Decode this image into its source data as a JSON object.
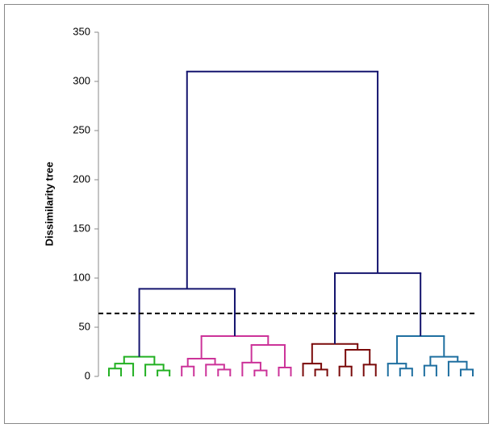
{
  "chart_data": {
    "type": "dendrogram",
    "ylabel": "Dissimilarity tree",
    "ylim": [
      0,
      350
    ],
    "yticks": [
      0,
      50,
      100,
      150,
      200,
      250,
      300,
      350
    ],
    "cut_height": 64,
    "tree": {
      "height": 310,
      "color": "#14146e",
      "children": [
        {
          "height": 89,
          "children": [
            {
              "height": 20,
              "color": "#22b022",
              "children": [
                {
                  "height": 13,
                  "children": [
                    {
                      "height": 8,
                      "children": [
                        {
                          "height": 0
                        },
                        {
                          "height": 0
                        }
                      ]
                    },
                    {
                      "height": 0
                    }
                  ]
                },
                {
                  "height": 12,
                  "children": [
                    {
                      "height": 0
                    },
                    {
                      "height": 6,
                      "children": [
                        {
                          "height": 0
                        },
                        {
                          "height": 0
                        }
                      ]
                    }
                  ]
                }
              ]
            },
            {
              "height": 41,
              "color": "#cc3399",
              "children": [
                {
                  "height": 18,
                  "children": [
                    {
                      "height": 10,
                      "children": [
                        {
                          "height": 0
                        },
                        {
                          "height": 0
                        }
                      ]
                    },
                    {
                      "height": 12,
                      "children": [
                        {
                          "height": 0
                        },
                        {
                          "height": 7,
                          "children": [
                            {
                              "height": 0
                            },
                            {
                              "height": 0
                            }
                          ]
                        }
                      ]
                    }
                  ]
                },
                {
                  "height": 32,
                  "children": [
                    {
                      "height": 14,
                      "children": [
                        {
                          "height": 0
                        },
                        {
                          "height": 6,
                          "children": [
                            {
                              "height": 0
                            },
                            {
                              "height": 0
                            }
                          ]
                        }
                      ]
                    },
                    {
                      "height": 9,
                      "children": [
                        {
                          "height": 0
                        },
                        {
                          "height": 0
                        }
                      ]
                    }
                  ]
                }
              ]
            }
          ]
        },
        {
          "height": 105,
          "children": [
            {
              "height": 33,
              "color": "#7a0a0a",
              "children": [
                {
                  "height": 13,
                  "children": [
                    {
                      "height": 0
                    },
                    {
                      "height": 7,
                      "children": [
                        {
                          "height": 0
                        },
                        {
                          "height": 0
                        }
                      ]
                    }
                  ]
                },
                {
                  "height": 27,
                  "children": [
                    {
                      "height": 10,
                      "children": [
                        {
                          "height": 0
                        },
                        {
                          "height": 0
                        }
                      ]
                    },
                    {
                      "height": 12,
                      "children": [
                        {
                          "height": 0
                        },
                        {
                          "height": 0
                        }
                      ]
                    }
                  ]
                }
              ]
            },
            {
              "height": 41,
              "color": "#1f6fa0",
              "children": [
                {
                  "height": 13,
                  "children": [
                    {
                      "height": 0
                    },
                    {
                      "height": 8,
                      "children": [
                        {
                          "height": 0
                        },
                        {
                          "height": 0
                        }
                      ]
                    }
                  ]
                },
                {
                  "height": 20,
                  "children": [
                    {
                      "height": 11,
                      "children": [
                        {
                          "height": 0
                        },
                        {
                          "height": 0
                        }
                      ]
                    },
                    {
                      "height": 15,
                      "children": [
                        {
                          "height": 0
                        },
                        {
                          "height": 7,
                          "children": [
                            {
                              "height": 0
                            },
                            {
                              "height": 0
                            }
                          ]
                        }
                      ]
                    }
                  ]
                }
              ]
            }
          ]
        }
      ]
    }
  }
}
